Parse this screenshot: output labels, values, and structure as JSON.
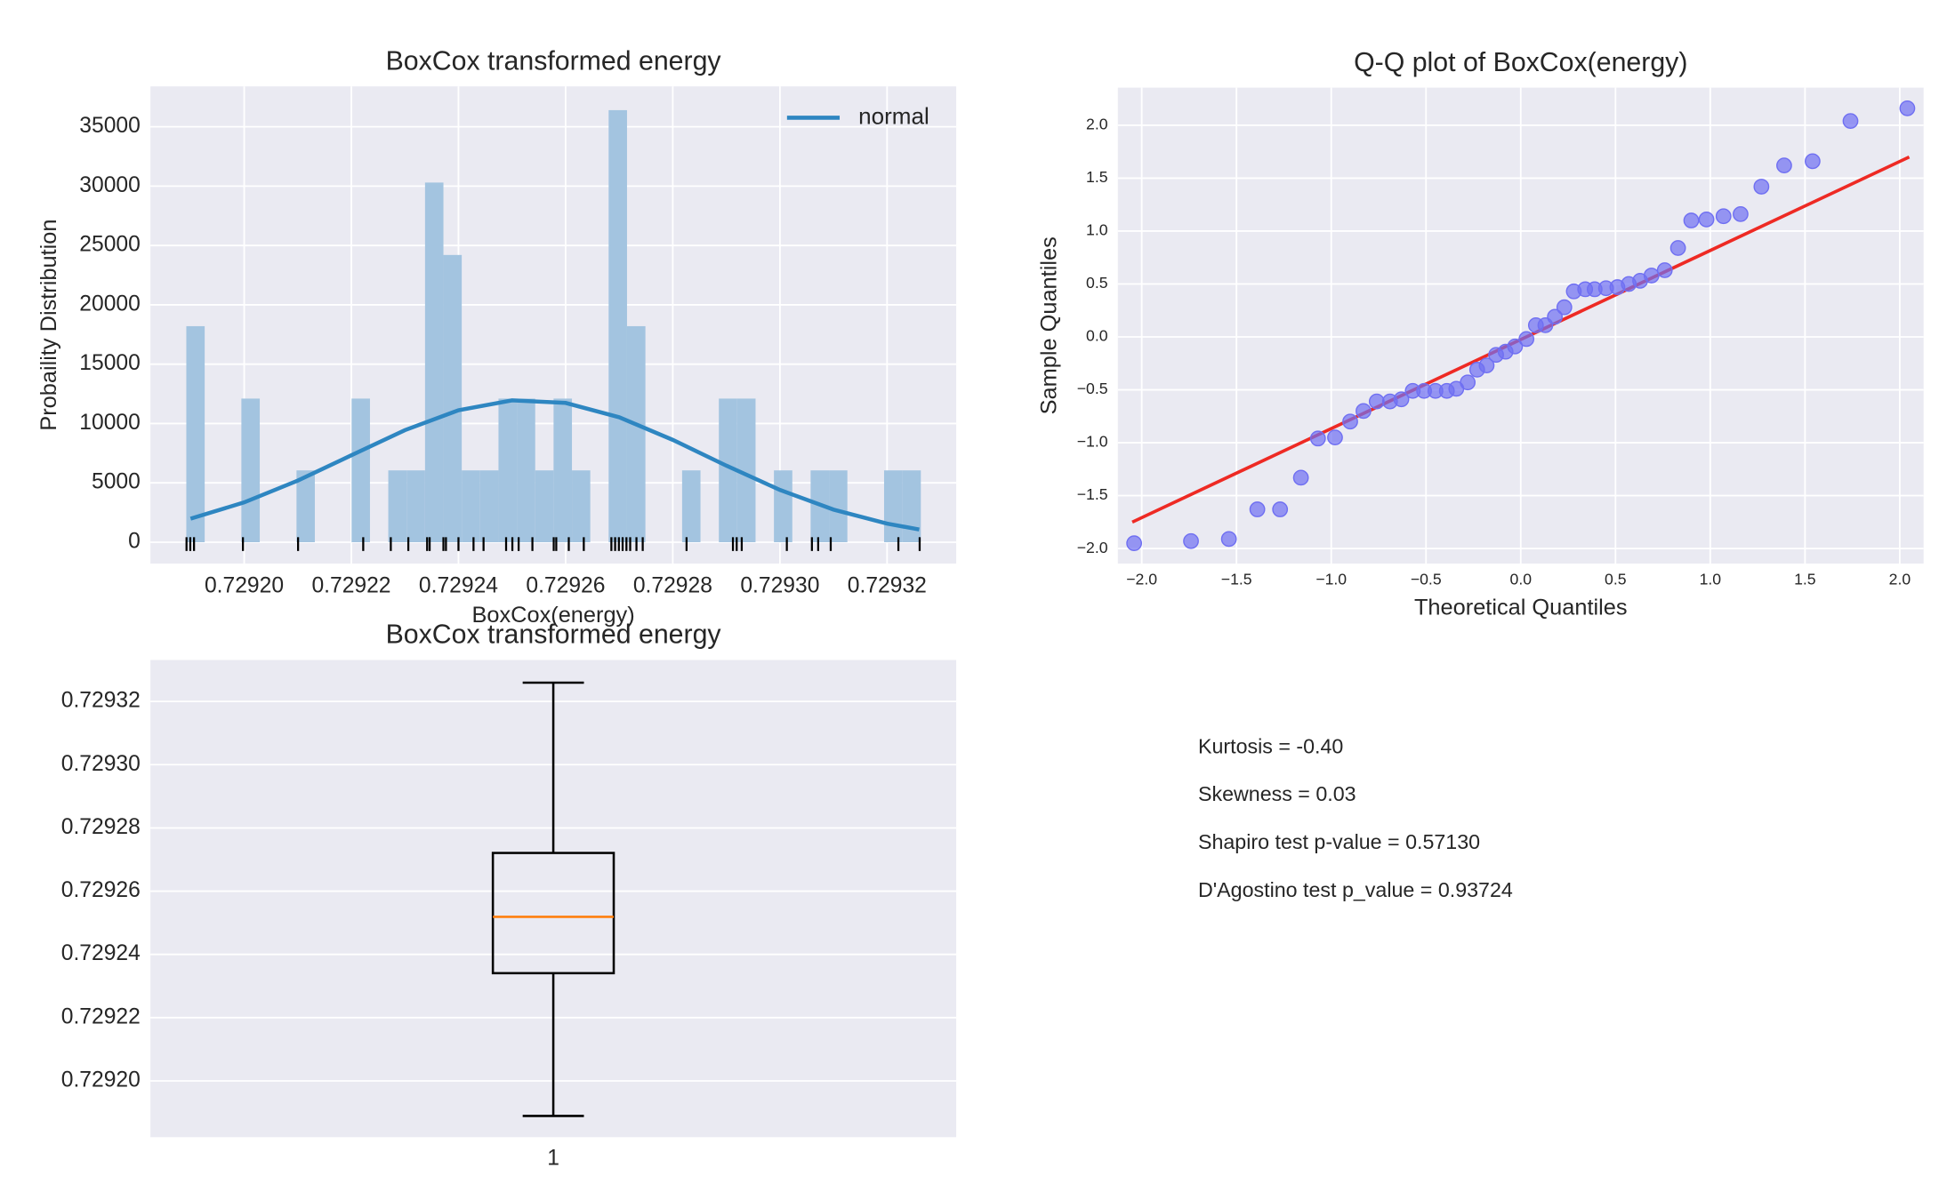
{
  "chart_data": [
    {
      "type": "histogram",
      "title": "BoxCox transformed energy",
      "xlabel": "BoxCox(energy)",
      "ylabel": "Probaility Distribution",
      "bins": [
        0.7291892,
        0.72919263,
        0.72919606,
        0.72919948,
        0.72920291,
        0.72920634,
        0.72920977,
        0.72921319,
        0.72921662,
        0.72922005,
        0.72922348,
        0.7292269,
        0.72923033,
        0.72923376,
        0.72923719,
        0.72924061,
        0.72924404,
        0.72924747,
        0.7292509,
        0.72925432,
        0.72925775,
        0.72926118,
        0.7292646,
        0.72926803,
        0.72927146,
        0.72927489,
        0.72927831,
        0.72928174,
        0.72928517,
        0.7292886,
        0.72929202,
        0.72929545,
        0.72929888,
        0.72930231,
        0.72930573,
        0.72930916,
        0.72931259,
        0.72931602,
        0.72931944,
        0.72932287,
        0.7293263
      ],
      "values": [
        18200,
        0,
        0,
        12100,
        0,
        0,
        6050,
        0,
        0,
        12100,
        0,
        6050,
        6050,
        30300,
        24200,
        6050,
        6050,
        12100,
        12100,
        6050,
        12100,
        6050,
        0,
        36400,
        18200,
        0,
        0,
        6050,
        0,
        12100,
        12100,
        0,
        6050,
        0,
        6050,
        6050,
        0,
        0,
        6050,
        6050
      ],
      "color": "#a3c4e0",
      "curve": {
        "name": "normal",
        "color": "#2e86c1",
        "x": [
          0.72919,
          0.7292,
          0.72921,
          0.72922,
          0.72923,
          0.72924,
          0.72925,
          0.72926,
          0.72927,
          0.72928,
          0.72929,
          0.7293,
          0.72931,
          0.72932,
          0.729326
        ],
        "values": [
          1981,
          3356,
          5187,
          7323,
          9439,
          11115,
          11951,
          11736,
          10526,
          8621,
          6450,
          4405,
          2748,
          1567,
          1071
        ]
      },
      "rug": {
        "color": "#000000",
        "values": [
          0.72918924,
          0.72918994,
          0.72919064,
          0.72919977,
          0.72921006,
          0.72922222,
          0.72922737,
          0.72923064,
          0.72923415,
          0.72923462,
          0.72923719,
          0.72923766,
          0.72924,
          0.72924281,
          0.72924468,
          0.72924889,
          0.72925006,
          0.72925123,
          0.7292538,
          0.72925778,
          0.72925825,
          0.72926059,
          0.72926339,
          0.72926854,
          0.72926924,
          0.72926994,
          0.72927064,
          0.72927135,
          0.72927205,
          0.72927322,
          0.72927439,
          0.72928257,
          0.72929123,
          0.72929193,
          0.72929287,
          0.72930129,
          0.72930597,
          0.72930714,
          0.72930948,
          0.72932211,
          0.72932608
        ]
      },
      "xlim": [
        0.7291825,
        0.7293329
      ],
      "ylim": [
        -1800,
        38400
      ],
      "xticks": [
        {
          "value": 0.7292,
          "label": "0.72920"
        },
        0.72922,
        0.72924,
        0.72926,
        0.72928,
        {
          "value": 0.7293,
          "label": "0.72930"
        },
        0.72932
      ],
      "yticks": [
        0,
        5000,
        10000,
        15000,
        20000,
        25000,
        30000,
        35000
      ],
      "grid": true,
      "legend": "upper right"
    },
    {
      "type": "scatter",
      "title": "Q-Q plot of BoxCox(energy)",
      "xlabel": "Theoretical Quantiles",
      "ylabel": "Sample Quantiles",
      "x": [
        -2.04,
        -1.74,
        -1.54,
        -1.39,
        -1.27,
        -1.16,
        -1.07,
        -0.98,
        -0.9,
        -0.83,
        -0.76,
        -0.69,
        -0.63,
        -0.57,
        -0.51,
        -0.45,
        -0.39,
        -0.34,
        -0.28,
        -0.23,
        -0.18,
        -0.13,
        -0.08,
        -0.03,
        0.03,
        0.08,
        0.13,
        0.18,
        0.23,
        0.28,
        0.34,
        0.39,
        0.45,
        0.51,
        0.57,
        0.63,
        0.69,
        0.76,
        0.83,
        0.9,
        0.98,
        1.07,
        1.16,
        1.27,
        1.39,
        1.54,
        1.74,
        2.04
      ],
      "values": [
        -1.95,
        -1.93,
        -1.91,
        -1.63,
        -1.63,
        -1.33,
        -0.96,
        -0.95,
        -0.8,
        -0.7,
        -0.61,
        -0.61,
        -0.59,
        -0.51,
        -0.51,
        -0.51,
        -0.51,
        -0.49,
        -0.43,
        -0.31,
        -0.27,
        -0.17,
        -0.14,
        -0.09,
        -0.02,
        0.11,
        0.11,
        0.19,
        0.28,
        0.43,
        0.45,
        0.45,
        0.46,
        0.47,
        0.5,
        0.53,
        0.58,
        0.63,
        0.84,
        1.1,
        1.11,
        1.14,
        1.16,
        1.42,
        1.62,
        1.66,
        2.04,
        2.16
      ],
      "color": "#6f6ff2",
      "reference_line": {
        "color": "#ee2a24",
        "x": [
          -2.05,
          2.05
        ],
        "values": [
          -1.75,
          1.7
        ]
      },
      "xlim": [
        -2.126,
        2.126
      ],
      "ylim": [
        -2.142,
        2.355
      ],
      "xticks": [
        {
          "value": -2,
          "label": "−2.0"
        },
        {
          "value": -1.5,
          "label": "−1.5"
        },
        {
          "value": -1,
          "label": "−1.0"
        },
        {
          "value": -0.5,
          "label": "−0.5"
        },
        {
          "value": 0,
          "label": "0.0"
        },
        0.5,
        {
          "value": 1,
          "label": "1.0"
        },
        1.5,
        {
          "value": 2,
          "label": "2.0"
        }
      ],
      "yticks": [
        {
          "value": -2,
          "label": "−2.0"
        },
        {
          "value": -1.5,
          "label": "−1.5"
        },
        {
          "value": -1,
          "label": "−1.0"
        },
        {
          "value": -0.5,
          "label": "−0.5"
        },
        {
          "value": 0,
          "label": "0.0"
        },
        0.5,
        {
          "value": 1,
          "label": "1.0"
        },
        1.5,
        {
          "value": 2,
          "label": "2.0"
        }
      ],
      "grid": true
    },
    {
      "type": "box",
      "title": "BoxCox transformed energy",
      "categories": [
        "1"
      ],
      "boxes": [
        {
          "whislo": 0.72918891,
          "q1": 0.72923406,
          "med": 0.72925188,
          "q3": 0.72927208,
          "whishi": 0.72932594
        }
      ],
      "color": "#000000",
      "median_color": "#ff7f0e",
      "ylim": [
        0.7291822,
        0.7293331
      ],
      "yticks": [
        {
          "value": 0.7292,
          "label": "0.72920"
        },
        0.72922,
        0.72924,
        0.72926,
        0.72928,
        {
          "value": 0.7293,
          "label": "0.72930"
        },
        0.72932
      ],
      "grid": true
    }
  ],
  "stats_panel": {
    "lines": [
      "Kurtosis = -0.40",
      "Skewness = 0.03",
      "Shapiro test p-value = 0.57130",
      "D'Agostino test p_value = 0.93724"
    ]
  }
}
